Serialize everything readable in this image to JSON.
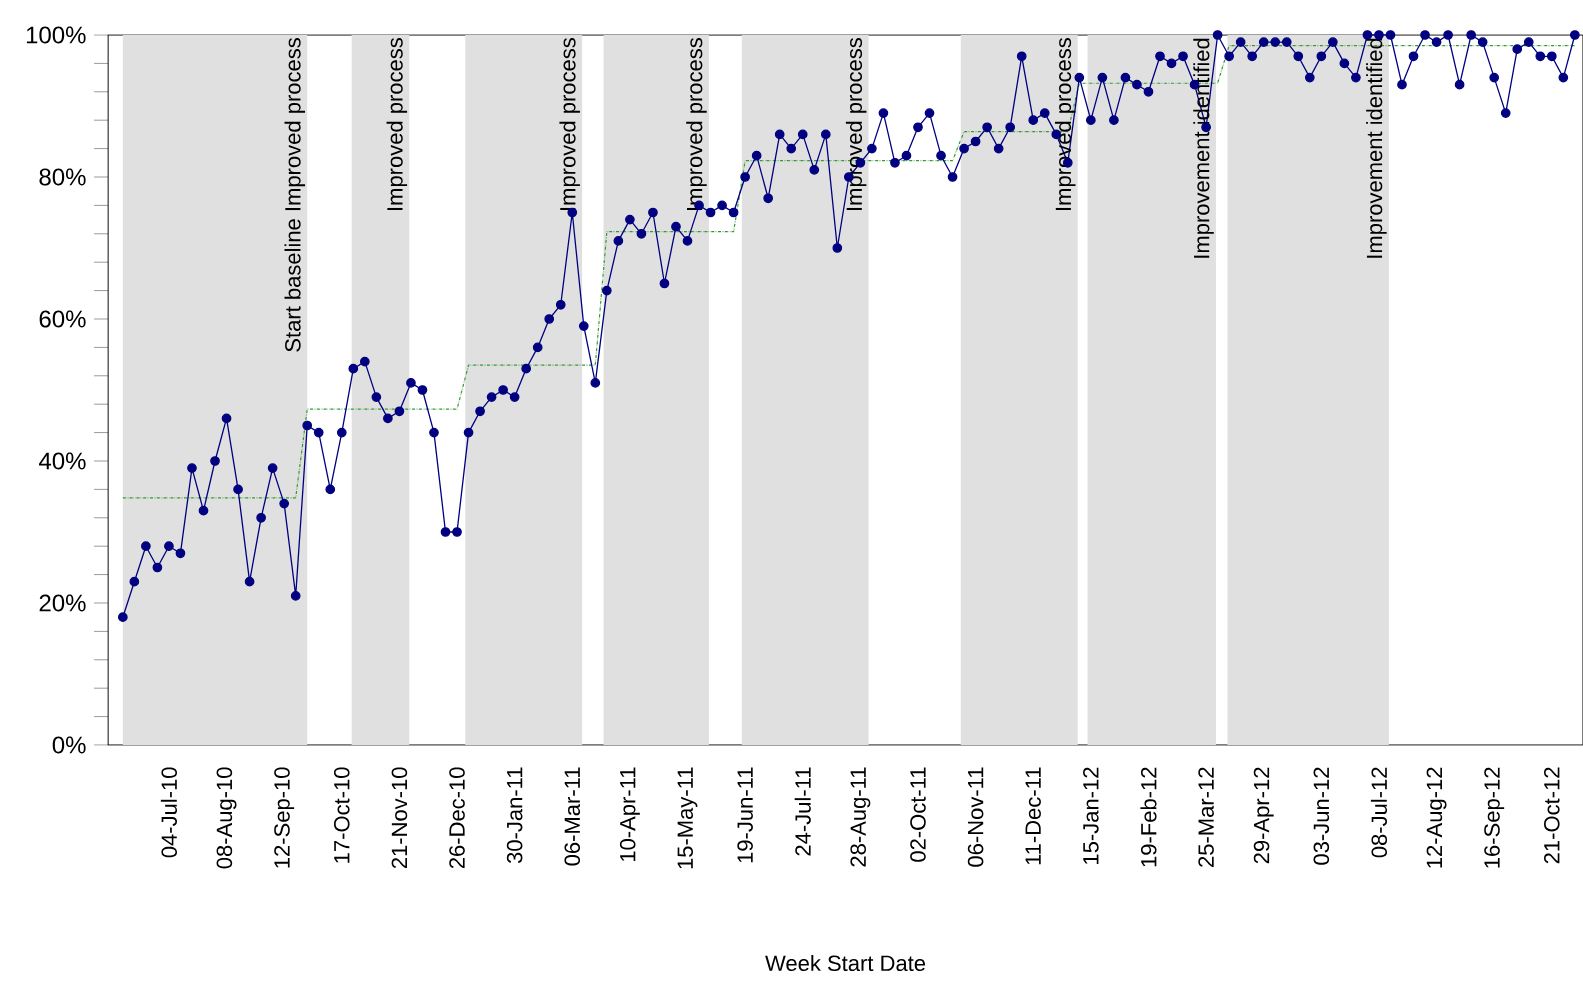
{
  "chart_data": {
    "type": "line",
    "xlabel": "Week Start Date",
    "x": [
      "2010-06-06",
      "2010-06-13",
      "2010-06-20",
      "2010-06-27",
      "2010-07-04",
      "2010-07-11",
      "2010-07-18",
      "2010-07-25",
      "2010-08-01",
      "2010-08-08",
      "2010-08-15",
      "2010-08-22",
      "2010-08-29",
      "2010-09-05",
      "2010-09-12",
      "2010-09-19",
      "2010-09-26",
      "2010-10-03",
      "2010-10-10",
      "2010-10-17",
      "2010-10-24",
      "2010-10-31",
      "2010-11-07",
      "2010-11-14",
      "2010-11-21",
      "2010-11-28",
      "2010-12-05",
      "2010-12-12",
      "2010-12-19",
      "2010-12-26",
      "2011-01-02",
      "2011-01-09",
      "2011-01-16",
      "2011-01-23",
      "2011-01-30",
      "2011-02-06",
      "2011-02-13",
      "2011-02-20",
      "2011-02-27",
      "2011-03-06",
      "2011-03-13",
      "2011-03-20",
      "2011-03-27",
      "2011-04-03",
      "2011-04-10",
      "2011-04-17",
      "2011-04-24",
      "2011-05-01",
      "2011-05-08",
      "2011-05-15",
      "2011-05-22",
      "2011-05-29",
      "2011-06-05",
      "2011-06-12",
      "2011-06-19",
      "2011-06-26",
      "2011-07-03",
      "2011-07-10",
      "2011-07-17",
      "2011-07-24",
      "2011-07-31",
      "2011-08-07",
      "2011-08-14",
      "2011-08-21",
      "2011-08-28",
      "2011-09-04",
      "2011-09-11",
      "2011-09-18",
      "2011-09-25",
      "2011-10-02",
      "2011-10-09",
      "2011-10-16",
      "2011-10-23",
      "2011-10-30",
      "2011-11-06",
      "2011-11-13",
      "2011-11-20",
      "2011-11-27",
      "2011-12-04",
      "2011-12-11",
      "2011-12-18",
      "2011-12-25",
      "2012-01-01",
      "2012-01-08",
      "2012-01-15",
      "2012-01-22",
      "2012-01-29",
      "2012-02-05",
      "2012-02-12",
      "2012-02-19",
      "2012-02-26",
      "2012-03-04",
      "2012-03-11",
      "2012-03-18",
      "2012-03-25",
      "2012-04-01",
      "2012-04-08",
      "2012-04-15",
      "2012-04-22",
      "2012-04-29",
      "2012-05-06",
      "2012-05-13",
      "2012-05-20",
      "2012-05-27",
      "2012-06-03",
      "2012-06-10",
      "2012-06-17",
      "2012-06-24",
      "2012-07-01",
      "2012-07-08",
      "2012-07-15",
      "2012-07-22",
      "2012-07-29",
      "2012-08-05",
      "2012-08-12",
      "2012-08-19",
      "2012-08-26",
      "2012-09-02",
      "2012-09-09",
      "2012-09-16",
      "2012-09-23",
      "2012-09-30",
      "2012-10-07",
      "2012-10-14",
      "2012-10-21",
      "2012-10-28",
      "2012-11-04"
    ],
    "series": [
      {
        "color": "#000080",
        "marker": "circle",
        "line_style": "solid",
        "values": [
          18,
          23,
          28,
          25,
          28,
          27,
          39,
          33,
          40,
          46,
          36,
          23,
          32,
          39,
          34,
          21,
          45,
          44,
          36,
          44,
          53,
          54,
          49,
          46,
          47,
          51,
          50,
          44,
          30,
          30,
          44,
          47,
          49,
          50,
          49,
          53,
          56,
          60,
          62,
          75,
          59,
          51,
          64,
          71,
          74,
          72,
          75,
          65,
          73,
          71,
          76,
          75,
          76,
          75,
          80,
          83,
          77,
          86,
          84,
          86,
          81,
          86,
          70,
          80,
          82,
          84,
          89,
          82,
          83,
          87,
          89,
          83,
          80,
          84,
          85,
          87,
          84,
          87,
          97,
          88,
          89,
          86,
          82,
          94,
          88,
          94,
          88,
          94,
          93,
          92,
          97,
          96,
          97,
          93,
          87,
          100,
          97,
          99,
          97,
          99,
          99,
          99,
          97,
          94,
          97,
          99,
          96,
          94,
          100,
          100,
          100,
          93,
          97,
          100,
          99,
          100,
          93,
          100,
          99,
          94,
          89,
          98,
          99,
          97,
          97,
          94,
          100
        ]
      },
      {
        "color": "#339933",
        "marker": "none",
        "line_style": "dotted",
        "values": [
          34.8,
          34.8,
          34.8,
          34.8,
          34.8,
          34.8,
          34.8,
          34.8,
          34.8,
          34.8,
          34.8,
          34.8,
          34.8,
          34.8,
          34.8,
          34.8,
          47.3,
          47.3,
          47.3,
          47.3,
          47.3,
          47.3,
          47.3,
          47.3,
          47.3,
          47.3,
          47.3,
          47.3,
          47.3,
          47.3,
          53.5,
          53.5,
          53.5,
          53.5,
          53.5,
          53.5,
          53.5,
          53.5,
          53.5,
          53.5,
          53.5,
          53.5,
          72.3,
          72.3,
          72.3,
          72.3,
          72.3,
          72.3,
          72.3,
          72.3,
          72.3,
          72.3,
          72.3,
          72.3,
          82.3,
          82.3,
          82.3,
          82.3,
          82.3,
          82.3,
          82.3,
          82.3,
          82.3,
          82.3,
          82.3,
          82.3,
          82.3,
          82.3,
          82.3,
          82.3,
          82.3,
          82.3,
          82.3,
          86.4,
          86.4,
          86.4,
          86.4,
          86.4,
          86.4,
          86.4,
          86.4,
          86.4,
          86.4,
          93.2,
          93.2,
          93.2,
          93.2,
          93.2,
          93.2,
          93.2,
          93.2,
          93.2,
          93.2,
          93.2,
          93.2,
          93.2,
          98.5,
          98.5,
          98.5,
          98.5,
          98.5,
          98.5,
          98.5,
          98.5,
          98.5,
          98.5,
          98.5,
          98.5,
          98.5,
          98.5,
          98.5,
          98.5,
          98.5,
          98.5,
          98.5,
          98.5,
          98.5,
          98.5,
          98.5,
          98.5,
          98.5,
          98.5,
          98.5,
          98.5,
          98.5,
          98.5,
          98.5
        ]
      }
    ],
    "xlim": [
      "2010-05-28",
      "2012-11-09"
    ],
    "xticks": [
      {
        "value": "2010-07-04",
        "label": "04-Jul-10"
      },
      {
        "value": "2010-08-08",
        "label": "08-Aug-10"
      },
      {
        "value": "2010-09-12",
        "label": "12-Sep-10"
      },
      {
        "value": "2010-10-17",
        "label": "17-Oct-10"
      },
      {
        "value": "2010-11-21",
        "label": "21-Nov-10"
      },
      {
        "value": "2010-12-26",
        "label": "26-Dec-10"
      },
      {
        "value": "2011-01-30",
        "label": "30-Jan-11"
      },
      {
        "value": "2011-03-06",
        "label": "06-Mar-11"
      },
      {
        "value": "2011-04-10",
        "label": "10-Apr-11"
      },
      {
        "value": "2011-05-15",
        "label": "15-May-11"
      },
      {
        "value": "2011-06-19",
        "label": "19-Jun-11"
      },
      {
        "value": "2011-07-24",
        "label": "24-Jul-11"
      },
      {
        "value": "2011-08-28",
        "label": "28-Aug-11"
      },
      {
        "value": "2011-10-02",
        "label": "02-Oct-11"
      },
      {
        "value": "2011-11-06",
        "label": "06-Nov-11"
      },
      {
        "value": "2011-12-11",
        "label": "11-Dec-11"
      },
      {
        "value": "2012-01-15",
        "label": "15-Jan-12"
      },
      {
        "value": "2012-02-19",
        "label": "19-Feb-12"
      },
      {
        "value": "2012-03-25",
        "label": "25-Mar-12"
      },
      {
        "value": "2012-04-29",
        "label": "29-Apr-12"
      },
      {
        "value": "2012-06-03",
        "label": "03-Jun-12"
      },
      {
        "value": "2012-07-08",
        "label": "08-Jul-12"
      },
      {
        "value": "2012-08-12",
        "label": "12-Aug-12"
      },
      {
        "value": "2012-09-16",
        "label": "16-Sep-12"
      },
      {
        "value": "2012-10-21",
        "label": "21-Oct-12"
      }
    ],
    "ylim": [
      0,
      100
    ],
    "yticks": [
      {
        "value": 0,
        "label": "0%"
      },
      {
        "value": 4,
        "label": null
      },
      {
        "value": 8,
        "label": null
      },
      {
        "value": 12,
        "label": null
      },
      {
        "value": 16,
        "label": null
      },
      {
        "value": 20,
        "label": "20%"
      },
      {
        "value": 24,
        "label": null
      },
      {
        "value": 28,
        "label": null
      },
      {
        "value": 32,
        "label": null
      },
      {
        "value": 36,
        "label": null
      },
      {
        "value": 40,
        "label": "40%"
      },
      {
        "value": 44,
        "label": null
      },
      {
        "value": 48,
        "label": null
      },
      {
        "value": 52,
        "label": null
      },
      {
        "value": 56,
        "label": null
      },
      {
        "value": 60,
        "label": "60%"
      },
      {
        "value": 64,
        "label": null
      },
      {
        "value": 68,
        "label": null
      },
      {
        "value": 72,
        "label": null
      },
      {
        "value": 76,
        "label": null
      },
      {
        "value": 80,
        "label": "80%"
      },
      {
        "value": 84,
        "label": null
      },
      {
        "value": 88,
        "label": null
      },
      {
        "value": 92,
        "label": null
      },
      {
        "value": 96,
        "label": null
      },
      {
        "value": 100,
        "label": "100%"
      }
    ],
    "bands": [
      {
        "axis": "x",
        "from": "2010-06-06",
        "to": "2010-09-26",
        "color": "#e0e0e0",
        "label": "Start baseline Improved process"
      },
      {
        "axis": "x",
        "from": "2010-10-23",
        "to": "2010-11-27",
        "color": "#e0e0e0",
        "label": "Improved process"
      },
      {
        "axis": "x",
        "from": "2010-12-31",
        "to": "2011-03-12",
        "color": "#e0e0e0",
        "label": "Improved process"
      },
      {
        "axis": "x",
        "from": "2011-03-25",
        "to": "2011-05-28",
        "color": "#e0e0e0",
        "label": "Improved process"
      },
      {
        "axis": "x",
        "from": "2011-06-17",
        "to": "2011-09-02",
        "color": "#e0e0e0",
        "label": "Improved process"
      },
      {
        "axis": "x",
        "from": "2011-10-28",
        "to": "2012-01-07",
        "color": "#e0e0e0",
        "label": "Improved process"
      },
      {
        "axis": "x",
        "from": "2012-01-13",
        "to": "2012-03-31",
        "color": "#e0e0e0",
        "label": "Improvement identified"
      },
      {
        "axis": "x",
        "from": "2012-04-07",
        "to": "2012-07-14",
        "color": "#e0e0e0",
        "label": "Improvement identified"
      }
    ]
  }
}
